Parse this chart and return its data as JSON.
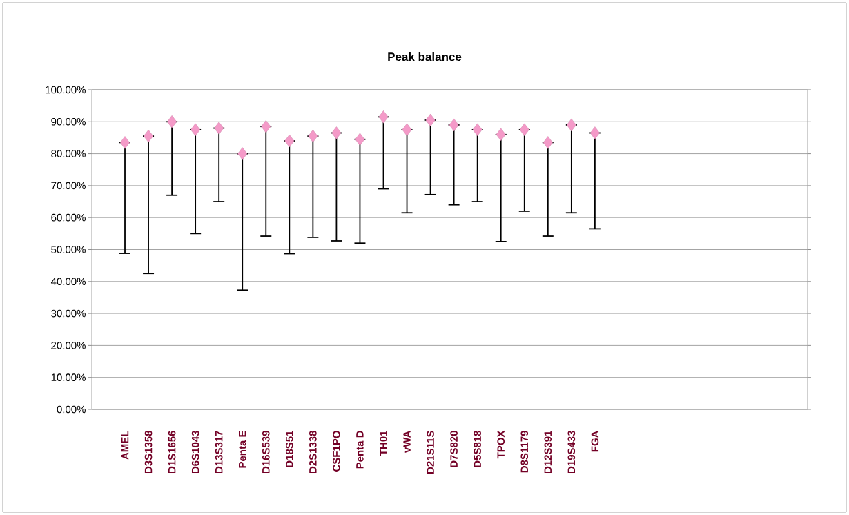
{
  "chart_data": {
    "type": "scatter",
    "title": "Peak balance",
    "categories": [
      "AMEL",
      "D3S1358",
      "D1S1656",
      "D6S1043",
      "D13S317",
      "Penta E",
      "D16S539",
      "D18S51",
      "D2S1338",
      "CSF1PO",
      "Penta D",
      "TH01",
      "vWA",
      "D21S11S",
      "D7S820",
      "D5S818",
      "TPOX",
      "D8S1179",
      "D12S391",
      "D19S433",
      "FGA"
    ],
    "series": [
      {
        "color": "#f49ac8",
        "values": [
          83.5,
          85.5,
          90,
          87.5,
          88,
          80,
          88.5,
          84,
          85.5,
          86.5,
          84.5,
          91.5,
          87.5,
          90.5,
          89,
          87.5,
          86,
          87.5,
          83.5,
          89,
          86.5
        ],
        "errors": [
          [
            48.8,
            83.5
          ],
          [
            42.5,
            85.5
          ],
          [
            67,
            90
          ],
          [
            55,
            87.5
          ],
          [
            65,
            88
          ],
          [
            37.3,
            80
          ],
          [
            54.2,
            88.5
          ],
          [
            48.7,
            84
          ],
          [
            53.8,
            85.5
          ],
          [
            52.7,
            86.5
          ],
          [
            52,
            84.5
          ],
          [
            69,
            91.5
          ],
          [
            61.5,
            87.5
          ],
          [
            67.2,
            90.5
          ],
          [
            64,
            89
          ],
          [
            65,
            87.5
          ],
          [
            52.5,
            86
          ],
          [
            62,
            87.5
          ],
          [
            54.2,
            83.5
          ],
          [
            61.5,
            89
          ],
          [
            56.5,
            86.5
          ]
        ]
      }
    ],
    "ylim": [
      0,
      100
    ],
    "yticks": [
      {
        "value": 0,
        "label": "0.00%"
      },
      {
        "value": 10,
        "label": "10.00%"
      },
      {
        "value": 20,
        "label": "20.00%"
      },
      {
        "value": 30,
        "label": "30.00%"
      },
      {
        "value": 40,
        "label": "40.00%"
      },
      {
        "value": 50,
        "label": "50.00%"
      },
      {
        "value": 60,
        "label": "60.00%"
      },
      {
        "value": 70,
        "label": "70.00%"
      },
      {
        "value": 80,
        "label": "80.00%"
      },
      {
        "value": 90,
        "label": "90.00%"
      },
      {
        "value": 100,
        "label": "100.00%"
      }
    ],
    "grid": "y",
    "marker": "diamond"
  }
}
